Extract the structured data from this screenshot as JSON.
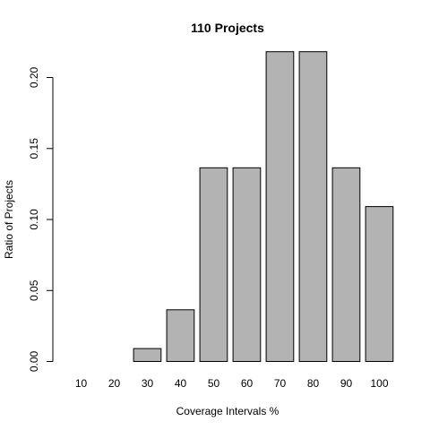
{
  "chart_data": {
    "type": "bar",
    "title": "110 Projects",
    "xlabel": "Coverage Intervals %",
    "ylabel": "Ratio of Projects",
    "categories": [
      "10",
      "20",
      "30",
      "40",
      "50",
      "60",
      "70",
      "80",
      "90",
      "100"
    ],
    "values": [
      0.0,
      0.0,
      0.0091,
      0.0364,
      0.1364,
      0.1364,
      0.2182,
      0.2182,
      0.1364,
      0.1091
    ],
    "ylim": [
      0,
      0.22
    ],
    "yticks": [
      "0.00",
      "0.05",
      "0.10",
      "0.15",
      "0.20"
    ],
    "grid": false,
    "legend": "none",
    "bar_color": "#b3b3b3",
    "edge_color": "#000000"
  }
}
